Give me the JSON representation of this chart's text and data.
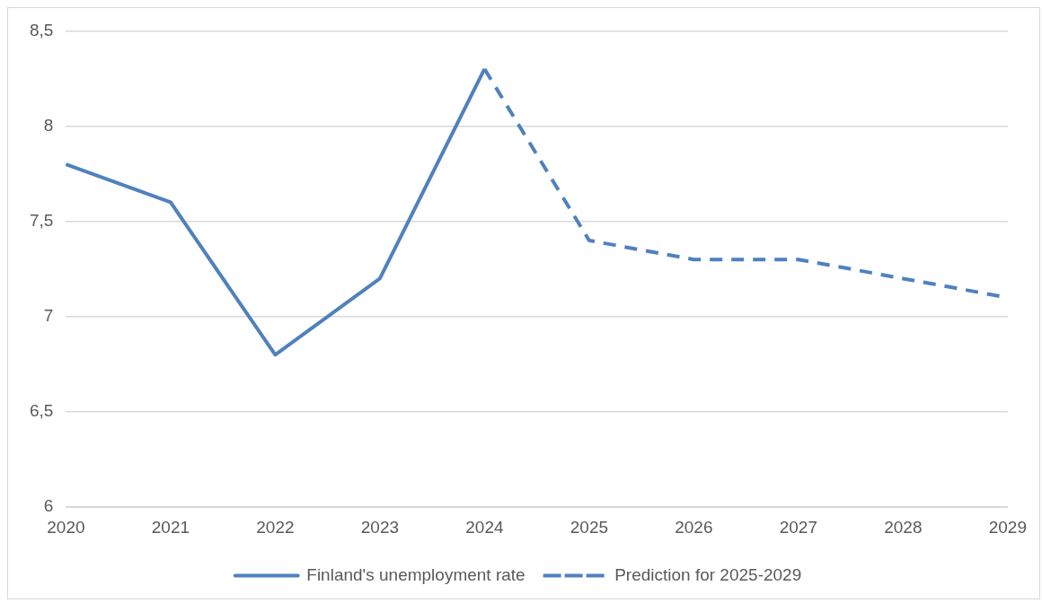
{
  "chart_data": {
    "type": "line",
    "categories": [
      "2020",
      "2021",
      "2022",
      "2023",
      "2024",
      "2025",
      "2026",
      "2027",
      "2028",
      "2029"
    ],
    "series": [
      {
        "name": "Finland's unemployment rate",
        "color": "#4f81bd",
        "line_style": "solid",
        "values": [
          7.8,
          7.6,
          6.8,
          7.2,
          8.3,
          null,
          null,
          null,
          null,
          null
        ]
      },
      {
        "name": "Prediction for 2025-2029",
        "color": "#4f81bd",
        "line_style": "dashed",
        "values": [
          null,
          null,
          null,
          null,
          8.3,
          7.4,
          7.3,
          7.3,
          7.2,
          7.1
        ]
      }
    ],
    "ylim": [
      6,
      8.5
    ],
    "yticks": [
      6,
      {
        "value": 6.5,
        "label": "6,5"
      },
      7,
      {
        "value": 7.5,
        "label": "7,5"
      },
      8,
      {
        "value": 8.5,
        "label": "8,5"
      }
    ],
    "grid": "y",
    "legend": "bottom",
    "marker": "none"
  }
}
